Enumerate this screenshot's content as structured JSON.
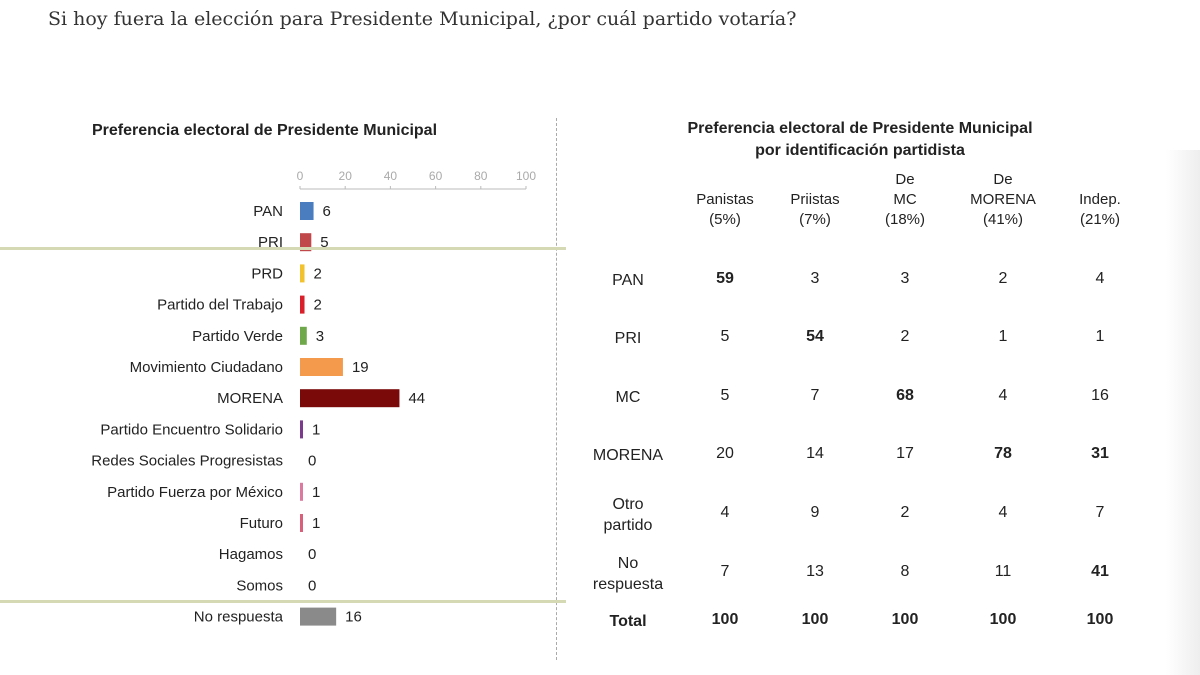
{
  "question": "Si hoy fuera la elección para Presidente Municipal, ¿por cuál partido votaría?",
  "chart_data": {
    "type": "bar",
    "title": "Preferencia electoral de Presidente Municipal",
    "orientation": "horizontal",
    "xlim": [
      0,
      100
    ],
    "ticks": [
      "0",
      "20",
      "40",
      "60",
      "80",
      "100"
    ],
    "categories": [
      "PAN",
      "PRI",
      "PRD",
      "Partido del Trabajo",
      "Partido Verde",
      "Movimiento Ciudadano",
      "MORENA",
      "Partido Encuentro Solidario",
      "Redes Sociales Progresistas",
      "Partido Fuerza por México",
      "Futuro",
      "Hagamos",
      "Somos",
      "No respuesta"
    ],
    "values": [
      6,
      5,
      2,
      2,
      3,
      19,
      44,
      1,
      0,
      1,
      1,
      0,
      0,
      16
    ],
    "colors": [
      "#4a7cc0",
      "#c0474a",
      "#f2c12e",
      "#d9202a",
      "#6fa84a",
      "#f49a4c",
      "#7a0a0a",
      "#7a3b8a",
      "#999999",
      "#d97a9e",
      "#d9607a",
      "#999999",
      "#999999",
      "#8a8a8a"
    ]
  },
  "table": {
    "title_line1": "Preferencia electoral de Presidente Municipal",
    "title_line2": "por identificación partidista",
    "headers": [
      [
        "Panistas",
        "(5%)"
      ],
      [
        "Priistas",
        "(7%)"
      ],
      [
        "De",
        "MC",
        "(18%)"
      ],
      [
        "De",
        "MORENA",
        "(41%)"
      ],
      [
        "Indep.",
        "(21%)"
      ]
    ],
    "rows": [
      {
        "label": [
          "PAN"
        ],
        "values": [
          "59",
          "3",
          "3",
          "2",
          "4"
        ],
        "bold": [
          0
        ]
      },
      {
        "label": [
          "PRI"
        ],
        "values": [
          "5",
          "54",
          "2",
          "1",
          "1"
        ],
        "bold": [
          1
        ]
      },
      {
        "label": [
          "MC"
        ],
        "values": [
          "5",
          "7",
          "68",
          "4",
          "16"
        ],
        "bold": [
          2
        ]
      },
      {
        "label": [
          "MORENA"
        ],
        "values": [
          "20",
          "14",
          "17",
          "78",
          "31"
        ],
        "bold": [
          3,
          4
        ]
      },
      {
        "label": [
          "Otro",
          "partido"
        ],
        "values": [
          "4",
          "9",
          "2",
          "4",
          "7"
        ],
        "bold": []
      },
      {
        "label": [
          "No",
          "respuesta"
        ],
        "values": [
          "7",
          "13",
          "8",
          "11",
          "41"
        ],
        "bold": [
          4
        ]
      }
    ],
    "total": {
      "label": "Total",
      "values": [
        "100",
        "100",
        "100",
        "100",
        "100"
      ]
    }
  }
}
